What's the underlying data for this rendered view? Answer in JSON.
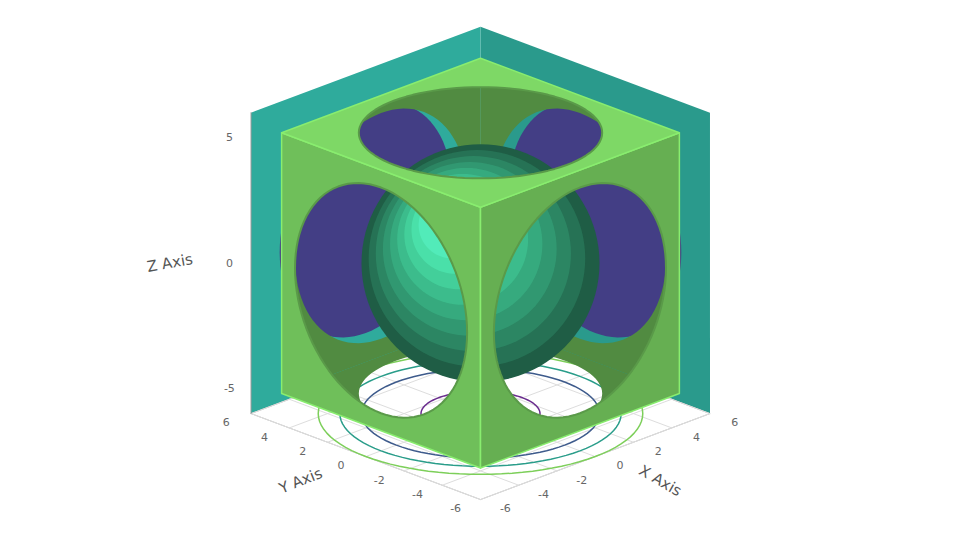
{
  "chart_data": {
    "type": "isosurface",
    "x_label": "X Axis",
    "y_label": "Y Axis",
    "z_label": "Z Axis",
    "xlim": [
      -6,
      6
    ],
    "ylim": [
      -6,
      6
    ],
    "zlim": [
      -6,
      6
    ],
    "xticks": [
      -6,
      -4,
      -2,
      0,
      2,
      4,
      6
    ],
    "yticks": [
      -6,
      -4,
      -2,
      0,
      2,
      4,
      6
    ],
    "zticks": [
      -5,
      0,
      5
    ],
    "grid": true,
    "sphere": {
      "radius": 4.4,
      "color": "#2f8f6a"
    },
    "frame": {
      "half_size": 5.2,
      "hole_radius": 4.5,
      "color": "#6fbf5a"
    },
    "walls": {
      "color": "#2a9a8c",
      "inner_radius": 4.5,
      "inner_color": "#433e85"
    },
    "floor_contours": {
      "radii": [
        2.2,
        4.4,
        5.2,
        6
      ],
      "colors": [
        "#6a2c8e",
        "#3e5b8c",
        "#2a9d8a",
        "#7dcf5a"
      ]
    }
  }
}
